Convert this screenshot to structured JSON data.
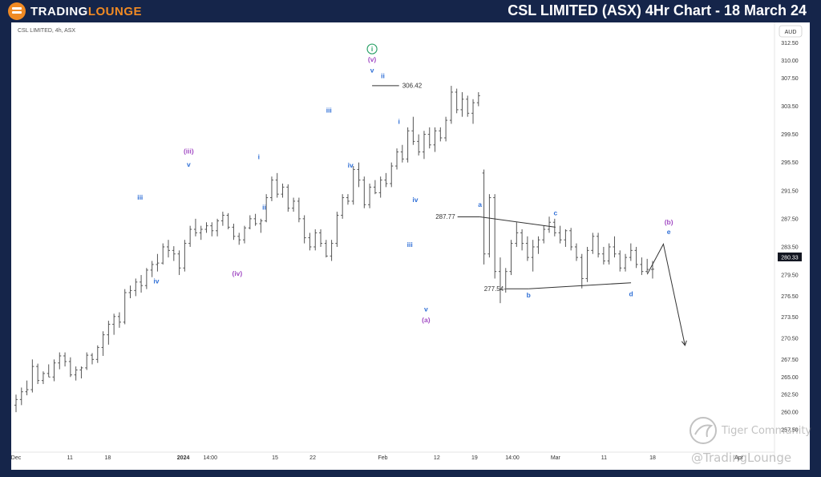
{
  "header": {
    "logo_part1": "TRADING",
    "logo_part2": "LOUNGE",
    "title": "CSL LIMITED (ASX) 4Hr Chart - 18 March 24"
  },
  "chart_info": {
    "symbol_label": "CSL LIMITED, 4h, ASX",
    "currency": "AUD",
    "current_price": "280.33"
  },
  "watermarks": {
    "community": "Tiger Community",
    "handle": "@TradingLounge"
  },
  "colors": {
    "brand_orange": "#f08a24",
    "navy": "#15254a",
    "wave_blue": "#2f6fd6",
    "wave_purple": "#a24cc4",
    "wave_green": "#2ea36a",
    "candle": "#555555"
  },
  "chart_data": {
    "type": "candlestick",
    "ylim": [
      255.0,
      314.5
    ],
    "y_ticks": [
      257.5,
      260.0,
      262.5,
      265.0,
      267.5,
      270.5,
      273.5,
      276.5,
      279.5,
      283.5,
      287.5,
      291.5,
      295.5,
      299.5,
      303.5,
      307.5,
      310.0,
      312.5
    ],
    "y_tick_labels": [
      "257.50",
      "260.00",
      "262.50",
      "265.00",
      "267.50",
      "270.50",
      "273.50",
      "276.50",
      "279.50",
      "283.50",
      "287.50",
      "291.50",
      "295.50",
      "299.50",
      "303.50",
      "307.50",
      "310.00",
      "312.50"
    ],
    "x_labels": [
      "Dec",
      "11",
      "18",
      "2024",
      "14:00",
      "15",
      "22",
      "Feb",
      "12",
      "19",
      "14:00",
      "Mar",
      "11",
      "18",
      "Apr"
    ],
    "x_label_positions": [
      0,
      10,
      17,
      31,
      36,
      48,
      55,
      68,
      78,
      85,
      92,
      100,
      109,
      118,
      134
    ],
    "last_bar_index": 118,
    "x_max_index": 140,
    "ohlc": [
      [
        261.0,
        262.5,
        260.0,
        261.8
      ],
      [
        261.8,
        263.5,
        261.0,
        262.9
      ],
      [
        262.9,
        264.5,
        262.4,
        263.2
      ],
      [
        263.2,
        267.5,
        262.8,
        266.5
      ],
      [
        266.5,
        266.9,
        264.0,
        264.5
      ],
      [
        264.5,
        265.8,
        264.0,
        265.5
      ],
      [
        265.5,
        266.8,
        265.0,
        265.0
      ],
      [
        265.0,
        267.5,
        264.4,
        267.0
      ],
      [
        267.0,
        268.5,
        266.1,
        268.0
      ],
      [
        268.0,
        268.5,
        266.5,
        267.2
      ],
      [
        267.2,
        267.8,
        265.0,
        265.3
      ],
      [
        265.3,
        266.5,
        264.5,
        266.0
      ],
      [
        266.0,
        266.5,
        264.8,
        266.3
      ],
      [
        266.3,
        268.5,
        266.0,
        268.1
      ],
      [
        268.1,
        268.4,
        266.8,
        267.5
      ],
      [
        267.5,
        269.5,
        267.0,
        269.2
      ],
      [
        269.2,
        271.5,
        268.0,
        271.0
      ],
      [
        271.0,
        273.0,
        269.6,
        272.5
      ],
      [
        272.5,
        274.0,
        271.0,
        273.6
      ],
      [
        273.6,
        274.2,
        272.0,
        272.8
      ],
      [
        272.8,
        277.5,
        272.5,
        277.0
      ],
      [
        277.0,
        278.0,
        276.2,
        277.3
      ],
      [
        277.3,
        279.0,
        276.5,
        278.5
      ],
      [
        278.5,
        279.5,
        277.0,
        278.0
      ],
      [
        278.0,
        280.5,
        277.5,
        280.2
      ],
      [
        280.2,
        281.5,
        279.2,
        281.0
      ],
      [
        281.0,
        282.5,
        280.0,
        281.2
      ],
      [
        281.2,
        284.0,
        281.0,
        283.5
      ],
      [
        283.5,
        284.5,
        282.0,
        283.0
      ],
      [
        283.0,
        283.6,
        281.5,
        282.5
      ],
      [
        282.5,
        283.0,
        279.5,
        280.5
      ],
      [
        280.5,
        284.5,
        280.0,
        284.0
      ],
      [
        284.0,
        286.5,
        283.5,
        286.0
      ],
      [
        286.0,
        287.5,
        285.0,
        285.5
      ],
      [
        285.5,
        286.5,
        284.5,
        286.0
      ],
      [
        286.0,
        287.0,
        285.5,
        286.5
      ],
      [
        286.5,
        287.0,
        285.0,
        285.8
      ],
      [
        285.8,
        287.5,
        285.0,
        287.2
      ],
      [
        287.2,
        288.5,
        286.5,
        288.0
      ],
      [
        288.0,
        288.3,
        286.0,
        286.3
      ],
      [
        286.3,
        286.8,
        284.5,
        285.0
      ],
      [
        285.0,
        285.5,
        283.8,
        284.5
      ],
      [
        284.5,
        286.5,
        284.0,
        286.2
      ],
      [
        286.2,
        288.0,
        286.0,
        287.5
      ],
      [
        287.5,
        288.2,
        286.5,
        286.8
      ],
      [
        286.8,
        287.5,
        285.5,
        287.2
      ],
      [
        287.2,
        291.0,
        287.0,
        290.5
      ],
      [
        290.5,
        293.5,
        290.0,
        293.0
      ],
      [
        293.0,
        294.0,
        290.5,
        291.0
      ],
      [
        291.0,
        292.5,
        290.5,
        292.0
      ],
      [
        292.0,
        292.4,
        288.5,
        289.0
      ],
      [
        289.0,
        290.5,
        288.5,
        290.0
      ],
      [
        290.0,
        290.5,
        287.0,
        287.5
      ],
      [
        287.5,
        288.0,
        284.0,
        284.8
      ],
      [
        284.8,
        285.5,
        283.0,
        283.5
      ],
      [
        283.5,
        286.0,
        283.0,
        285.5
      ],
      [
        285.5,
        286.0,
        283.5,
        284.0
      ],
      [
        284.0,
        284.5,
        282.0,
        282.2
      ],
      [
        282.2,
        284.5,
        281.5,
        284.0
      ],
      [
        284.0,
        288.5,
        283.5,
        288.0
      ],
      [
        288.0,
        291.0,
        287.5,
        290.5
      ],
      [
        290.5,
        291.0,
        289.5,
        290.0
      ],
      [
        290.0,
        295.0,
        289.5,
        294.5
      ],
      [
        294.5,
        295.5,
        292.0,
        293.0
      ],
      [
        293.0,
        293.5,
        289.0,
        289.5
      ],
      [
        289.5,
        292.5,
        289.0,
        292.0
      ],
      [
        292.0,
        293.0,
        291.0,
        291.2
      ],
      [
        291.2,
        293.5,
        290.5,
        293.0
      ],
      [
        293.0,
        294.0,
        292.0,
        292.5
      ],
      [
        292.5,
        295.5,
        292.0,
        295.0
      ],
      [
        295.0,
        297.5,
        294.5,
        297.0
      ],
      [
        297.0,
        298.0,
        295.5,
        296.0
      ],
      [
        296.0,
        300.5,
        295.5,
        300.0
      ],
      [
        300.0,
        302.0,
        298.0,
        298.5
      ],
      [
        298.5,
        299.5,
        296.5,
        297.0
      ],
      [
        297.0,
        300.0,
        296.0,
        299.5
      ],
      [
        299.5,
        300.5,
        297.5,
        298.0
      ],
      [
        298.0,
        300.5,
        297.0,
        300.0
      ],
      [
        300.0,
        300.5,
        298.5,
        299.0
      ],
      [
        299.0,
        302.0,
        298.5,
        301.5
      ],
      [
        301.5,
        306.4,
        301.0,
        305.5
      ],
      [
        305.5,
        306.0,
        302.5,
        303.0
      ],
      [
        303.0,
        305.5,
        302.0,
        304.5
      ],
      [
        304.5,
        305.0,
        302.0,
        302.5
      ],
      [
        302.5,
        304.5,
        301.0,
        304.0
      ],
      [
        304.0,
        305.5,
        303.5,
        305.0
      ],
      [
        294.0,
        294.5,
        281.0,
        282.5
      ],
      [
        282.5,
        291.0,
        282.0,
        290.5
      ],
      [
        290.5,
        291.0,
        279.0,
        280.0
      ],
      [
        280.0,
        282.0,
        275.5,
        277.5
      ],
      [
        277.5,
        280.5,
        277.0,
        280.0
      ],
      [
        280.0,
        284.5,
        279.5,
        284.0
      ],
      [
        284.0,
        287.0,
        283.5,
        285.5
      ],
      [
        285.5,
        286.0,
        283.0,
        284.0
      ],
      [
        284.0,
        285.0,
        281.5,
        282.0
      ],
      [
        282.0,
        284.5,
        280.0,
        283.5
      ],
      [
        283.5,
        285.0,
        282.5,
        284.5
      ],
      [
        284.5,
        286.5,
        284.0,
        286.0
      ],
      [
        286.0,
        287.8,
        285.5,
        287.0
      ],
      [
        287.0,
        287.5,
        285.0,
        285.5
      ],
      [
        285.5,
        286.5,
        284.0,
        284.5
      ],
      [
        284.5,
        286.0,
        283.5,
        285.8
      ],
      [
        285.8,
        286.2,
        283.0,
        283.5
      ],
      [
        283.5,
        284.0,
        281.5,
        282.0
      ],
      [
        282.0,
        282.5,
        277.6,
        279.0
      ],
      [
        279.0,
        283.5,
        278.5,
        283.0
      ],
      [
        283.0,
        285.5,
        282.5,
        285.0
      ],
      [
        285.0,
        285.5,
        282.0,
        282.5
      ],
      [
        282.5,
        283.5,
        281.0,
        281.5
      ],
      [
        281.5,
        284.0,
        281.0,
        283.5
      ],
      [
        283.5,
        285.0,
        282.0,
        282.5
      ],
      [
        282.5,
        283.0,
        280.0,
        280.5
      ],
      [
        280.5,
        282.5,
        280.0,
        282.0
      ],
      [
        282.0,
        284.0,
        281.5,
        283.0
      ],
      [
        283.0,
        283.5,
        280.5,
        281.0
      ],
      [
        281.0,
        282.0,
        279.5,
        280.0
      ],
      [
        280.0,
        281.8,
        279.8,
        280.3
      ],
      [
        280.3,
        281.5,
        279.0,
        280.33
      ]
    ],
    "levels": [
      {
        "label": "306.42",
        "value": 306.42
      },
      {
        "label": "287.77",
        "value": 287.77
      },
      {
        "label": "277.54",
        "value": 277.54
      }
    ],
    "wave_labels": [
      {
        "text": "iii",
        "color": "blue",
        "i": 23,
        "price": 290.2
      },
      {
        "text": "iv",
        "color": "blue",
        "i": 26,
        "price": 278.3
      },
      {
        "text": "(iii)",
        "color": "purple",
        "i": 32,
        "price": 296.8
      },
      {
        "text": "v",
        "color": "blue",
        "i": 32,
        "price": 294.9
      },
      {
        "text": "(iv)",
        "color": "purple",
        "i": 41,
        "price": 279.4
      },
      {
        "text": "i",
        "color": "blue",
        "i": 45,
        "price": 296.0
      },
      {
        "text": "ii",
        "color": "blue",
        "i": 46,
        "price": 288.8
      },
      {
        "text": "iii",
        "color": "blue",
        "i": 58,
        "price": 302.6
      },
      {
        "text": "iv",
        "color": "blue",
        "i": 62,
        "price": 294.8
      },
      {
        "text": "i",
        "color": "green",
        "i": 66,
        "price": 311.3,
        "circled": true
      },
      {
        "text": "(v)",
        "color": "purple",
        "i": 66,
        "price": 309.8
      },
      {
        "text": "v",
        "color": "blue",
        "i": 66,
        "price": 308.3
      },
      {
        "text": "ii",
        "color": "blue",
        "i": 68,
        "price": 307.5
      },
      {
        "text": "i",
        "color": "blue",
        "i": 71,
        "price": 301.0
      },
      {
        "text": "iv",
        "color": "blue",
        "i": 74,
        "price": 289.9
      },
      {
        "text": "iii",
        "color": "blue",
        "i": 73,
        "price": 283.5
      },
      {
        "text": "v",
        "color": "blue",
        "i": 76,
        "price": 274.3
      },
      {
        "text": "(a)",
        "color": "purple",
        "i": 76,
        "price": 272.8
      },
      {
        "text": "a",
        "color": "blue",
        "i": 86,
        "price": 289.2
      },
      {
        "text": "b",
        "color": "blue",
        "i": 95,
        "price": 276.3
      },
      {
        "text": "c",
        "color": "blue",
        "i": 100,
        "price": 288.0
      },
      {
        "text": "d",
        "color": "blue",
        "i": 114,
        "price": 276.5
      },
      {
        "text": "(b)",
        "color": "purple",
        "i": 121,
        "price": 286.7
      },
      {
        "text": "e",
        "color": "blue",
        "i": 121,
        "price": 285.3
      }
    ],
    "triangle_top": [
      [
        86,
        287.77
      ],
      [
        100,
        286.3
      ]
    ],
    "triangle_bottom": [
      [
        95,
        277.54
      ],
      [
        114,
        278.4
      ]
    ],
    "projection": [
      [
        117,
        279.6
      ],
      [
        120,
        283.9
      ],
      [
        124,
        269.5
      ]
    ]
  }
}
